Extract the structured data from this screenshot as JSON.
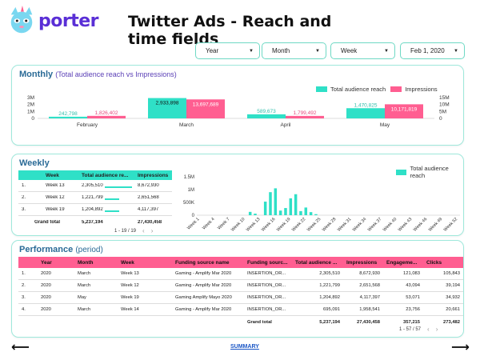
{
  "app": {
    "logo_text": "porter",
    "title": "Twitter Ads - Reach and time fields"
  },
  "filters": [
    {
      "label": "Year"
    },
    {
      "label": "Month"
    },
    {
      "label": "Week"
    },
    {
      "label": "Feb 1, 2020"
    }
  ],
  "colors": {
    "teal": "#2fe0c7",
    "pink": "#ff5e91",
    "card_border": "#9fe8db"
  },
  "monthly": {
    "title": "Monthly",
    "subtitle": "(Total audience reach vs Impressions)",
    "legend": [
      "Total audience reach",
      "Impressions"
    ],
    "left_ticks": [
      "3M",
      "2M",
      "1M",
      "0"
    ],
    "right_ticks": [
      "15M",
      "10M",
      "5M",
      "0"
    ]
  },
  "chart_data": [
    {
      "type": "bar",
      "title": "Monthly",
      "categories": [
        "February",
        "March",
        "April",
        "May"
      ],
      "series": [
        {
          "name": "Total audience reach",
          "values": [
            242798,
            2933898,
            589673,
            1470825
          ],
          "labels": [
            "242,798",
            "2,933,898",
            "589,673",
            "1,470,825"
          ]
        },
        {
          "name": "Impressions",
          "values": [
            1826402,
            13697689,
            1799492,
            10171819
          ],
          "labels": [
            "1,826,402",
            "13,697,689",
            "1,799,492",
            "10,171,819"
          ]
        }
      ],
      "ylim_left": [
        0,
        3000000
      ],
      "ylim_right": [
        0,
        15000000
      ]
    },
    {
      "type": "bar",
      "title": "Weekly",
      "legend": [
        "Total audience reach"
      ],
      "y_ticks": [
        "1.5M",
        "1M",
        "500K",
        "0"
      ],
      "ylim": [
        0,
        1500000
      ],
      "categories": [
        "Week 1",
        "Week 4",
        "Week 7",
        "Week 10",
        "Week 13",
        "Week 16",
        "Week 19",
        "Week 22",
        "Week 25",
        "Week 28",
        "Week 31",
        "Week 34",
        "Week 37",
        "Week 40",
        "Week 43",
        "Week 46",
        "Week 49",
        "Week 52"
      ],
      "bars": [
        {
          "week": 11,
          "value": 130000
        },
        {
          "week": 12,
          "value": 60000
        },
        {
          "week": 14,
          "value": 530000
        },
        {
          "week": 15,
          "value": 900000
        },
        {
          "week": 16,
          "value": 1050000
        },
        {
          "week": 17,
          "value": 180000
        },
        {
          "week": 18,
          "value": 280000
        },
        {
          "week": 19,
          "value": 660000
        },
        {
          "week": 20,
          "value": 820000
        },
        {
          "week": 21,
          "value": 160000
        },
        {
          "week": 22,
          "value": 300000
        },
        {
          "week": 23,
          "value": 120000
        },
        {
          "week": 24,
          "value": 40000
        }
      ]
    }
  ],
  "weekly": {
    "title": "Weekly",
    "columns": [
      "Week",
      "Total audience re...",
      "Impressions"
    ],
    "rows": [
      {
        "n": "1.",
        "week": "Week 13",
        "reach": "2,305,510",
        "impressions": "8,672,930",
        "fill": 1.0
      },
      {
        "n": "2.",
        "week": "Week 12",
        "reach": "1,221,799",
        "impressions": "2,651,568",
        "fill": 0.53
      },
      {
        "n": "3.",
        "week": "Week 19",
        "reach": "1,204,892",
        "impressions": "4,117,397",
        "fill": 0.52
      }
    ],
    "total": {
      "label": "Grand total",
      "reach": "5,237,194",
      "impressions": "27,430,458"
    },
    "pager": "1 - 19 / 19"
  },
  "performance": {
    "title": "Performance",
    "subtitle": "(period)",
    "columns": [
      "Year",
      "Month",
      "Week",
      "Funding source name",
      "Funding sourc...",
      "Total audience ...",
      "Impressions",
      "Engageme...",
      "Clicks"
    ],
    "rows": [
      {
        "n": "1.",
        "cells": [
          "2020",
          "March",
          "Week 13",
          "Gaming - Amplify Mar 2020",
          "INSERTION_OR...",
          "2,305,510",
          "8,672,930",
          "121,083",
          "105,843"
        ]
      },
      {
        "n": "2.",
        "cells": [
          "2020",
          "March",
          "Week 12",
          "Gaming - Amplify Mar 2020",
          "INSERTION_OR...",
          "1,221,799",
          "2,651,568",
          "43,094",
          "39,194"
        ]
      },
      {
        "n": "3.",
        "cells": [
          "2020",
          "May",
          "Week 19",
          "Gaming Amplify Mayo 2020",
          "INSERTION_OR...",
          "1,204,892",
          "4,117,397",
          "53,071",
          "34,932"
        ]
      },
      {
        "n": "4.",
        "cells": [
          "2020",
          "March",
          "Week 14",
          "Gaming - Amplify Mar 2020",
          "INSERTION_OR...",
          "695,091",
          "1,958,541",
          "23,756",
          "20,661"
        ]
      }
    ],
    "total": {
      "label": "Grand total",
      "reach": "5,237,194",
      "impressions": "27,430,458",
      "engagements": "357,215",
      "clicks": "273,482"
    },
    "pager": "1 - 57 / 57"
  },
  "footer": {
    "summary": "SUMMARY",
    "prev_icon": "arrow-left-icon",
    "next_icon": "arrow-right-icon"
  }
}
